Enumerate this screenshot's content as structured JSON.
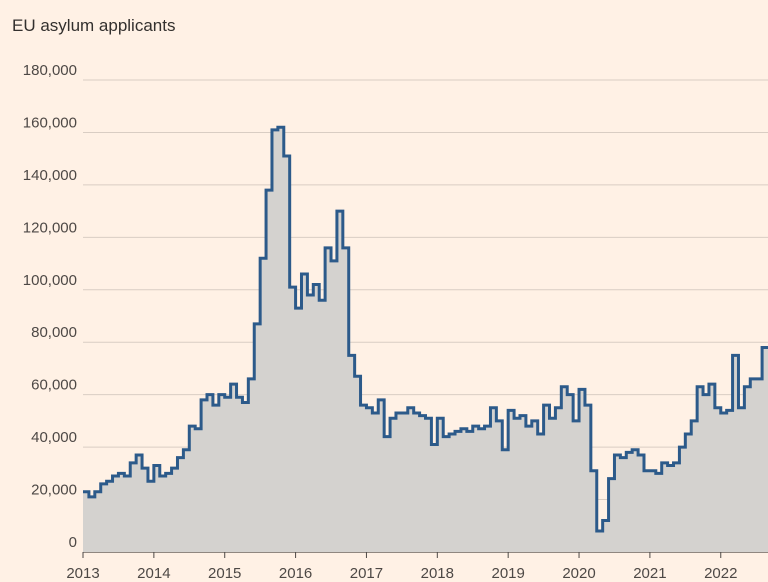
{
  "chart_data": {
    "type": "area",
    "title": "EU asylum applicants",
    "step": true,
    "xlabel": "",
    "ylabel": "",
    "xlim": [
      "2013-01",
      "2022-09"
    ],
    "ylim": [
      0,
      180000
    ],
    "y_ticks": [
      0,
      20000,
      40000,
      60000,
      80000,
      100000,
      120000,
      140000,
      160000,
      180000
    ],
    "y_tick_labels": [
      "0",
      "20,000",
      "40,000",
      "60,000",
      "80,000",
      "100,000",
      "120,000",
      "140,000",
      "160,000",
      "180,000"
    ],
    "x_ticks": [
      "2013",
      "2014",
      "2015",
      "2016",
      "2017",
      "2018",
      "2019",
      "2020",
      "2021",
      "2022"
    ],
    "grid": true,
    "line_color": "#2c5a8a",
    "fill_color": "#d4d2cf",
    "series": [
      {
        "x": [
          "2013-01",
          "2013-02",
          "2013-03",
          "2013-04",
          "2013-05",
          "2013-06",
          "2013-07",
          "2013-08",
          "2013-09",
          "2013-10",
          "2013-11",
          "2013-12",
          "2014-01",
          "2014-02",
          "2014-03",
          "2014-04",
          "2014-05",
          "2014-06",
          "2014-07",
          "2014-08",
          "2014-09",
          "2014-10",
          "2014-11",
          "2014-12",
          "2015-01",
          "2015-02",
          "2015-03",
          "2015-04",
          "2015-05",
          "2015-06",
          "2015-07",
          "2015-08",
          "2015-09",
          "2015-10",
          "2015-11",
          "2015-12",
          "2016-01",
          "2016-02",
          "2016-03",
          "2016-04",
          "2016-05",
          "2016-06",
          "2016-07",
          "2016-08",
          "2016-09",
          "2016-10",
          "2016-11",
          "2016-12",
          "2017-01",
          "2017-02",
          "2017-03",
          "2017-04",
          "2017-05",
          "2017-06",
          "2017-07",
          "2017-08",
          "2017-09",
          "2017-10",
          "2017-11",
          "2017-12",
          "2018-01",
          "2018-02",
          "2018-03",
          "2018-04",
          "2018-05",
          "2018-06",
          "2018-07",
          "2018-08",
          "2018-09",
          "2018-10",
          "2018-11",
          "2018-12",
          "2019-01",
          "2019-02",
          "2019-03",
          "2019-04",
          "2019-05",
          "2019-06",
          "2019-07",
          "2019-08",
          "2019-09",
          "2019-10",
          "2019-11",
          "2019-12",
          "2020-01",
          "2020-02",
          "2020-03",
          "2020-04",
          "2020-05",
          "2020-06",
          "2020-07",
          "2020-08",
          "2020-09",
          "2020-10",
          "2020-11",
          "2020-12",
          "2021-01",
          "2021-02",
          "2021-03",
          "2021-04",
          "2021-05",
          "2021-06",
          "2021-07",
          "2021-08",
          "2021-09",
          "2021-10",
          "2021-11",
          "2021-12",
          "2022-01",
          "2022-02",
          "2022-03",
          "2022-04",
          "2022-05",
          "2022-06",
          "2022-07",
          "2022-08"
        ],
        "values": [
          23000,
          21000,
          23000,
          26000,
          27000,
          29000,
          30000,
          29000,
          34000,
          37000,
          32000,
          27000,
          33000,
          29000,
          30000,
          32000,
          36000,
          39000,
          48000,
          47000,
          58000,
          60000,
          56000,
          60000,
          59000,
          64000,
          59000,
          57000,
          66000,
          87000,
          112000,
          138000,
          161000,
          162000,
          151000,
          101000,
          93000,
          106000,
          98000,
          102000,
          96000,
          116000,
          111000,
          130000,
          116000,
          75000,
          67000,
          56000,
          55000,
          53000,
          58000,
          44000,
          51000,
          53000,
          53000,
          55000,
          53000,
          52000,
          51000,
          41000,
          51000,
          44000,
          45000,
          46000,
          47000,
          46000,
          48000,
          47000,
          48000,
          55000,
          50000,
          39000,
          54000,
          51000,
          52000,
          48000,
          50000,
          45000,
          56000,
          51000,
          55000,
          63000,
          60000,
          50000,
          62000,
          56000,
          31000,
          8000,
          12000,
          28000,
          37000,
          36000,
          38000,
          39000,
          37000,
          31000,
          31000,
          30000,
          34000,
          33000,
          34000,
          40000,
          45000,
          50000,
          63000,
          60000,
          64000,
          55000,
          53000,
          54000,
          75000,
          55000,
          63000,
          66000,
          66000,
          78000
        ]
      }
    ]
  }
}
